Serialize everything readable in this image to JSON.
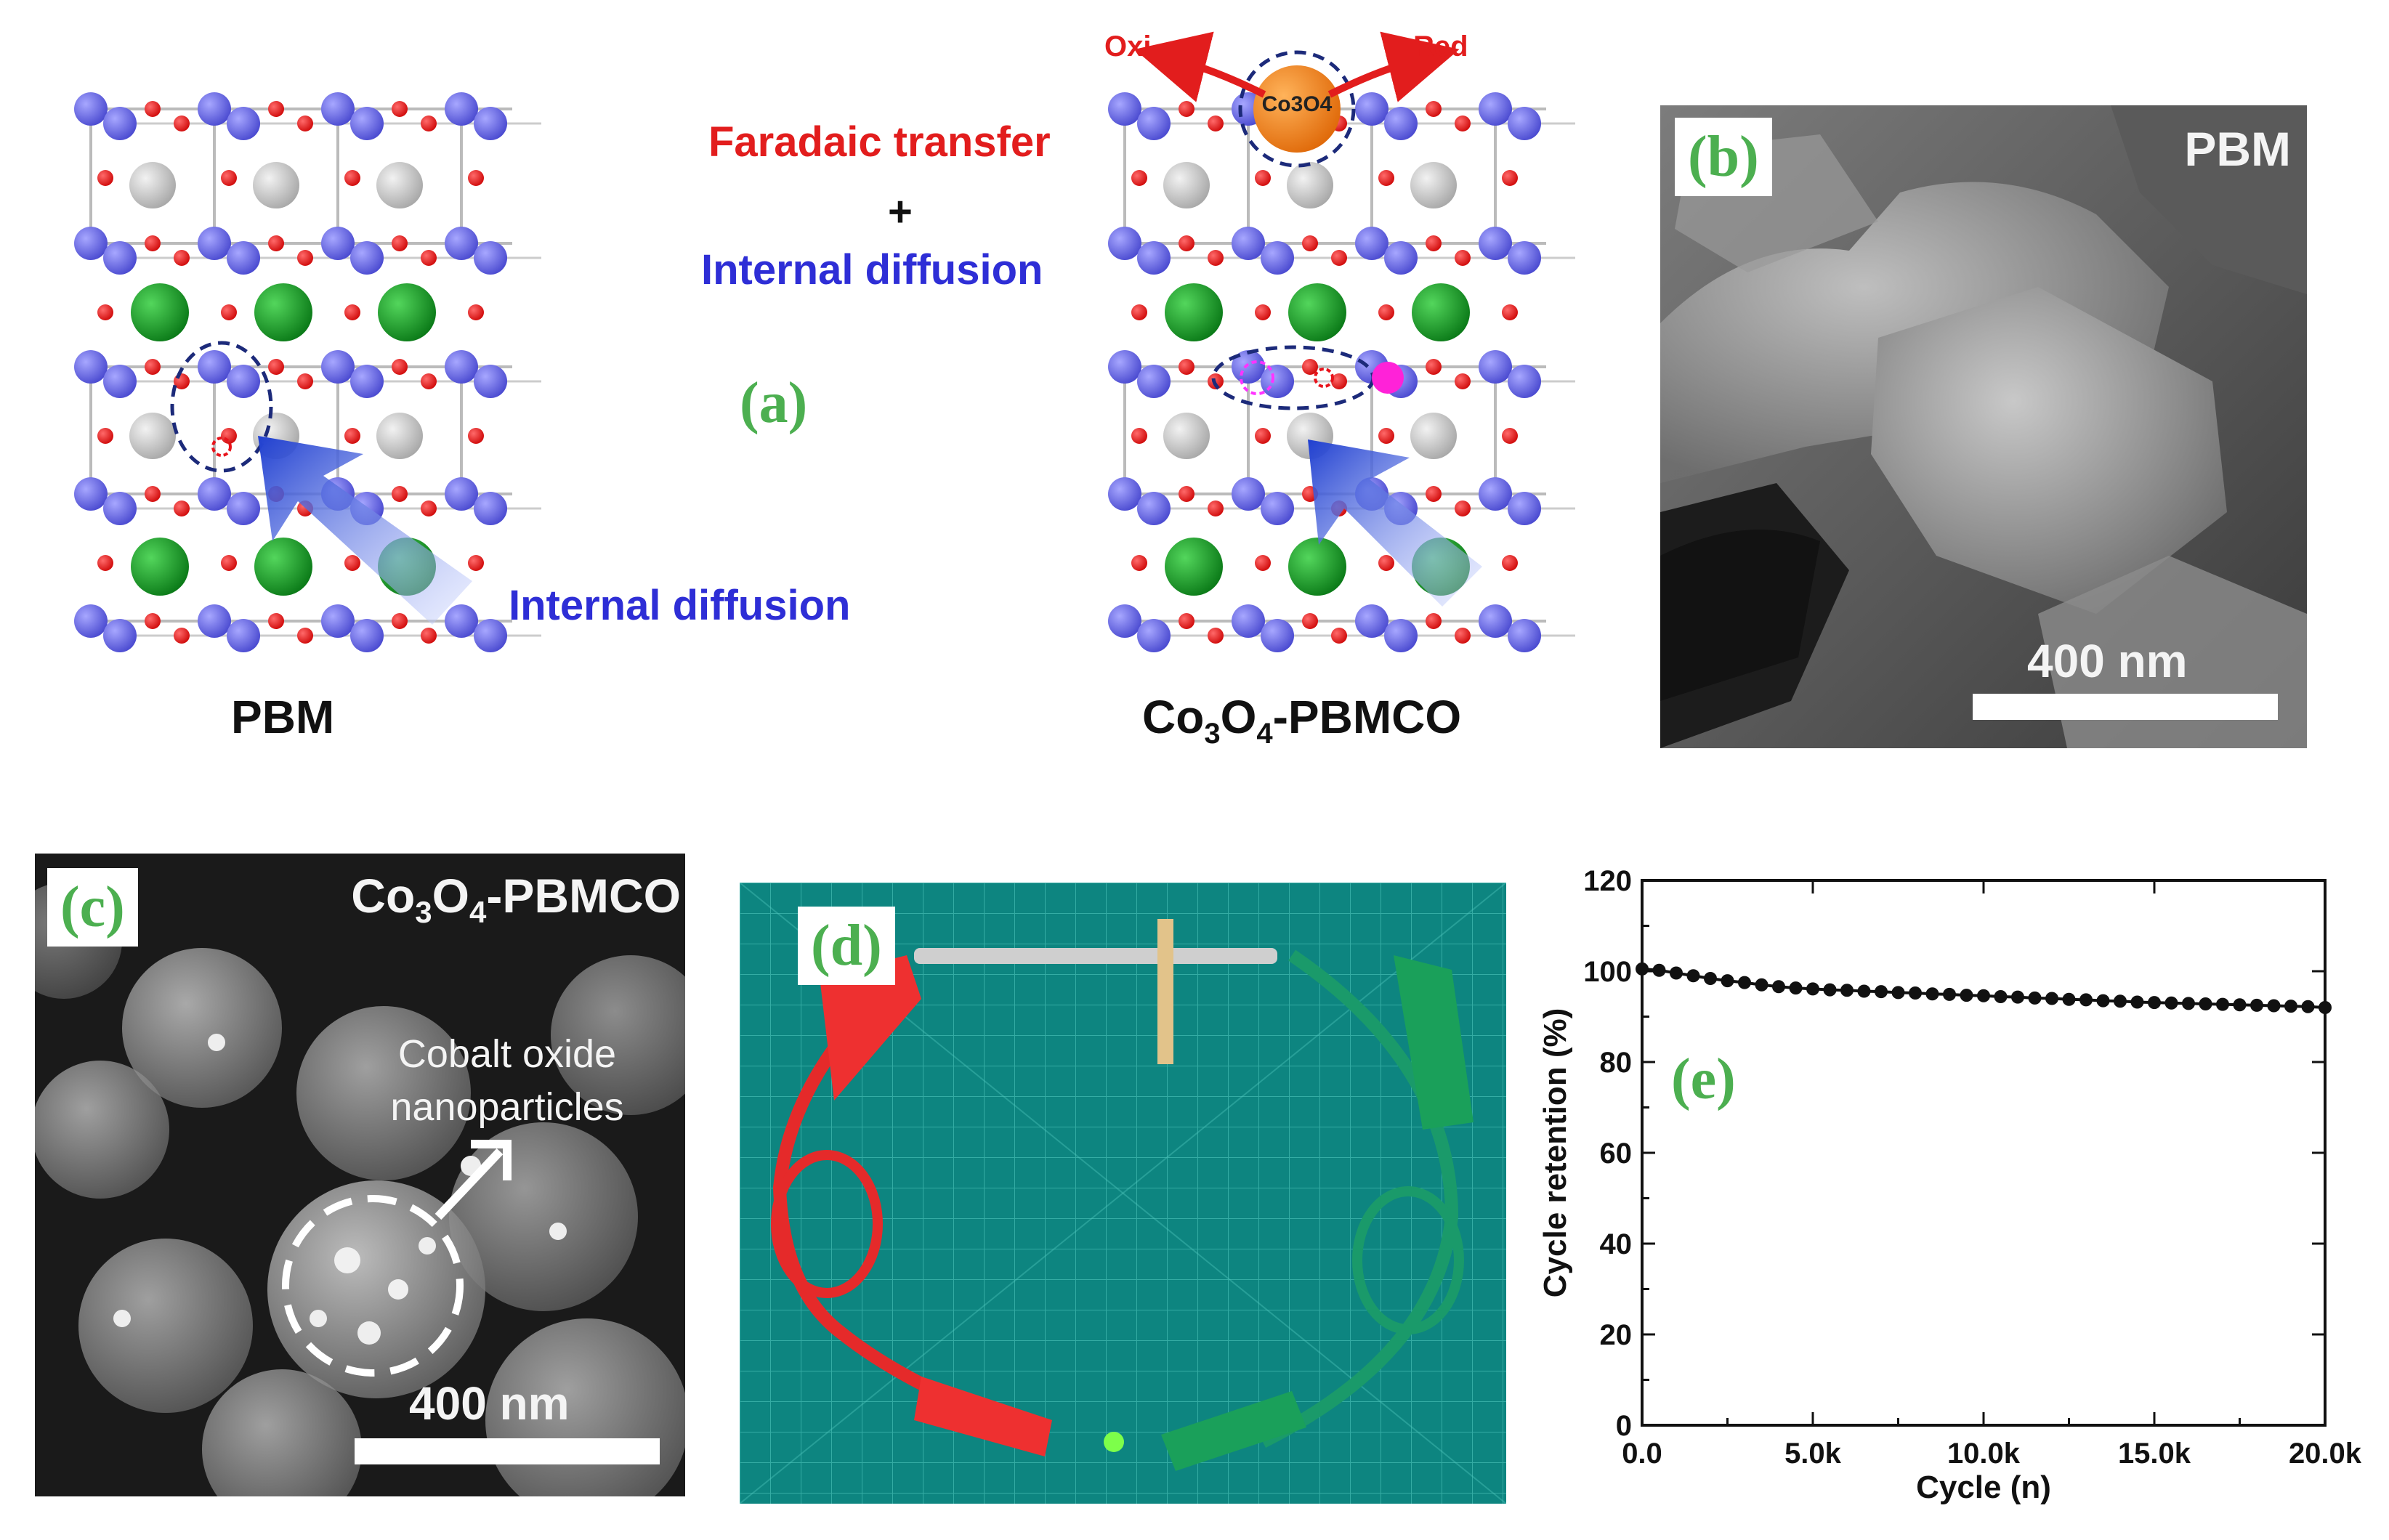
{
  "figure": {
    "panel_a": {
      "label": "(a)",
      "left_caption": "PBM",
      "right_caption_prefix": "Co",
      "right_caption_sub1": "3",
      "right_caption_mid": "O",
      "right_caption_sub2": "4",
      "right_caption_suffix": "-PBMCO",
      "faradaic_text": "Faradaic transfer",
      "plus_text": "+",
      "internal_diffusion_top": "Internal diffusion",
      "internal_diffusion_left": "Internal diffusion",
      "oxi_label": "Oxi",
      "red_label": "Red",
      "cluster_label": "Co3O4"
    },
    "panel_b": {
      "label": "(b)",
      "title": "PBM",
      "scalebar": "400 nm"
    },
    "panel_c": {
      "label": "(c)",
      "title_prefix": "Co",
      "title_sub1": "3",
      "title_mid": "O",
      "title_sub2": "4",
      "title_suffix": "-PBMCO",
      "annotation_line1": "Cobalt oxide",
      "annotation_line2": "nanoparticles",
      "scalebar": "400 nm"
    },
    "panel_d": {
      "label": "(d)"
    },
    "panel_e": {
      "label": "(e)"
    },
    "colors": {
      "oxygen": "#e8131b",
      "b_site": "#6464dc",
      "a_site_gray": "#c8c8c8",
      "green_atom": "#1a9a2a",
      "arrow_blue": "#2244cc",
      "text_red": "#e21d1d",
      "text_blue": "#2e2ed6",
      "label_green": "#4caf50"
    }
  },
  "chart_data": {
    "type": "scatter",
    "title": "",
    "xlabel": "Cycle (n)",
    "ylabel": "Cycle retention (%)",
    "xlim": [
      0,
      20000
    ],
    "ylim": [
      0,
      120
    ],
    "x_ticks": [
      "0.0",
      "5.0k",
      "10.0k",
      "15.0k",
      "20.0k"
    ],
    "y_ticks": [
      "0",
      "20",
      "40",
      "60",
      "80",
      "100",
      "120"
    ],
    "x_tick_values": [
      0,
      5000,
      10000,
      15000,
      20000
    ],
    "y_tick_values": [
      0,
      20,
      40,
      60,
      80,
      100,
      120
    ],
    "series": [
      {
        "x": [
          0,
          500,
          1000,
          1500,
          2000,
          2500,
          3000,
          3500,
          4000,
          4500,
          5000,
          5500,
          6000,
          6500,
          7000,
          7500,
          8000,
          8500,
          9000,
          9500,
          10000,
          10500,
          11000,
          11500,
          12000,
          12500,
          13000,
          13500,
          14000,
          14500,
          15000,
          15500,
          16000,
          16500,
          17000,
          17500,
          18000,
          18500,
          19000,
          19500,
          20000
        ],
        "y": [
          100.5,
          100.2,
          99.6,
          99.0,
          98.4,
          97.9,
          97.5,
          97.0,
          96.6,
          96.3,
          96.1,
          95.9,
          95.8,
          95.6,
          95.5,
          95.3,
          95.2,
          95.0,
          94.9,
          94.7,
          94.6,
          94.4,
          94.3,
          94.1,
          94.0,
          93.8,
          93.7,
          93.5,
          93.4,
          93.2,
          93.1,
          93.0,
          92.9,
          92.8,
          92.7,
          92.6,
          92.5,
          92.4,
          92.3,
          92.2,
          92.0
        ]
      }
    ],
    "grid": false,
    "marker_color": "#111111"
  }
}
